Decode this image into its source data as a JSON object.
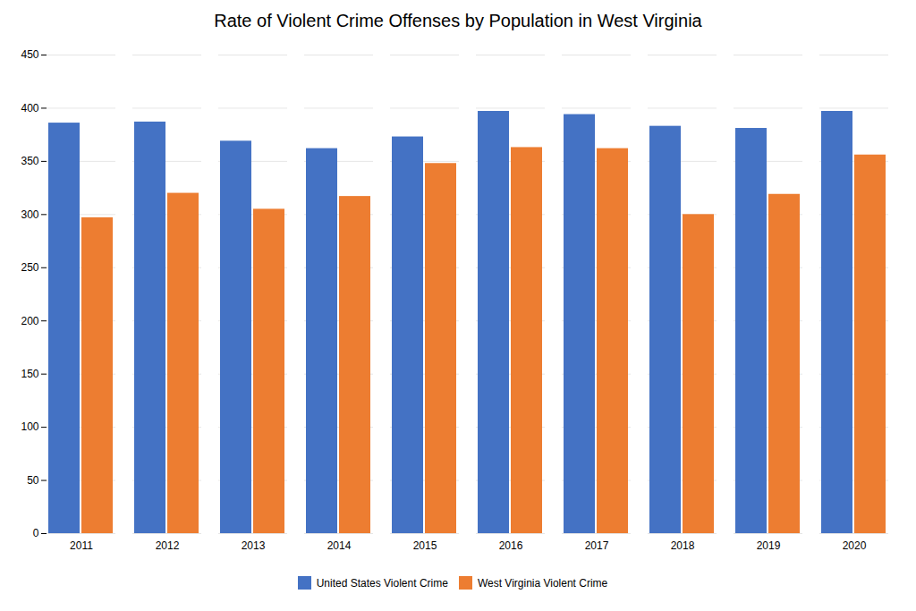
{
  "chart_data": {
    "type": "bar",
    "title": "Rate of Violent Crime Offenses by Population in West Virginia",
    "categories": [
      "2011",
      "2012",
      "2013",
      "2014",
      "2015",
      "2016",
      "2017",
      "2018",
      "2019",
      "2020"
    ],
    "series": [
      {
        "name": "United States Violent Crime",
        "color": "#4472C4",
        "values": [
          386,
          387,
          369,
          362,
          373,
          397,
          394,
          383,
          381,
          397
        ]
      },
      {
        "name": "West Virginia Violent Crime",
        "color": "#ED7D31",
        "values": [
          297,
          320,
          305,
          317,
          348,
          363,
          362,
          300,
          319,
          356
        ]
      }
    ],
    "ylim": [
      0,
      450
    ],
    "yticks": [
      0,
      50,
      100,
      150,
      200,
      250,
      300,
      350,
      400,
      450
    ],
    "grid": true,
    "legend": "bottom"
  }
}
